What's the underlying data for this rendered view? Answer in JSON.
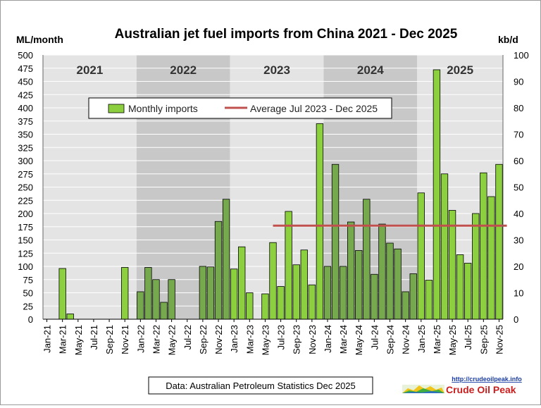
{
  "chart_data": {
    "type": "bar",
    "title": "Australian jet fuel imports from China 2021 - Dec 2025",
    "ylabel_left": "ML/month",
    "ylabel_right": "kb/d",
    "ylim_left": [
      0,
      500
    ],
    "ylim_right": [
      0,
      100
    ],
    "left_ticks": [
      0,
      25,
      50,
      75,
      100,
      125,
      150,
      175,
      200,
      225,
      250,
      275,
      300,
      325,
      350,
      375,
      400,
      425,
      450,
      475,
      500
    ],
    "right_ticks": [
      0,
      10,
      20,
      30,
      40,
      50,
      60,
      70,
      80,
      90,
      100
    ],
    "x_tick_labels": [
      "Jan-21",
      "Mar-21",
      "May-21",
      "Jul-21",
      "Sep-21",
      "Nov-21",
      "Jan-22",
      "Mar-22",
      "May-22",
      "Jul-22",
      "Sep-22",
      "Nov-22",
      "Jan-23",
      "Mar-23",
      "May-23",
      "Jul-23",
      "Sep-23",
      "Nov-23",
      "Jan-24",
      "Mar-24",
      "May-24",
      "Jul-24",
      "Sep-24",
      "Nov-24",
      "Jan-25",
      "Mar-25",
      "May-25",
      "Jul-25",
      "Sep-25",
      "Nov-25"
    ],
    "year_bands": [
      {
        "label": "2021",
        "shaded": false
      },
      {
        "label": "2022",
        "shaded": true
      },
      {
        "label": "2023",
        "shaded": false
      },
      {
        "label": "2024",
        "shaded": true
      },
      {
        "label": "2025",
        "shaded": false
      }
    ],
    "grid": true,
    "legend_position": "top-center",
    "series": [
      {
        "name": "Monthly imports",
        "type": "bar",
        "color": "#8ccf3f",
        "color_alt": "#76a94e",
        "values": [
          0,
          0,
          96,
          10,
          0,
          0,
          0,
          0,
          0,
          0,
          98,
          0,
          52,
          98,
          75,
          32,
          75,
          0,
          0,
          0,
          100,
          99,
          185,
          227,
          95,
          137,
          50,
          0,
          48,
          145,
          62,
          204,
          103,
          131,
          65,
          370,
          100,
          293,
          100,
          184,
          130,
          227,
          85,
          180,
          144,
          133,
          52,
          86,
          239,
          74,
          472,
          275,
          206,
          122,
          106,
          200,
          277,
          232,
          293
        ]
      },
      {
        "name": "Average Jul 2023 - Dec 2025",
        "type": "line",
        "color": "#c0504d",
        "value": 177,
        "from_index": 29,
        "to_index": 59
      }
    ],
    "source_note": "Data: Australian Petroleum Statistics Dec 2025",
    "logo": {
      "url_text": "http://crudeoilpeak.info",
      "name": "Crude Oil Peak"
    }
  }
}
